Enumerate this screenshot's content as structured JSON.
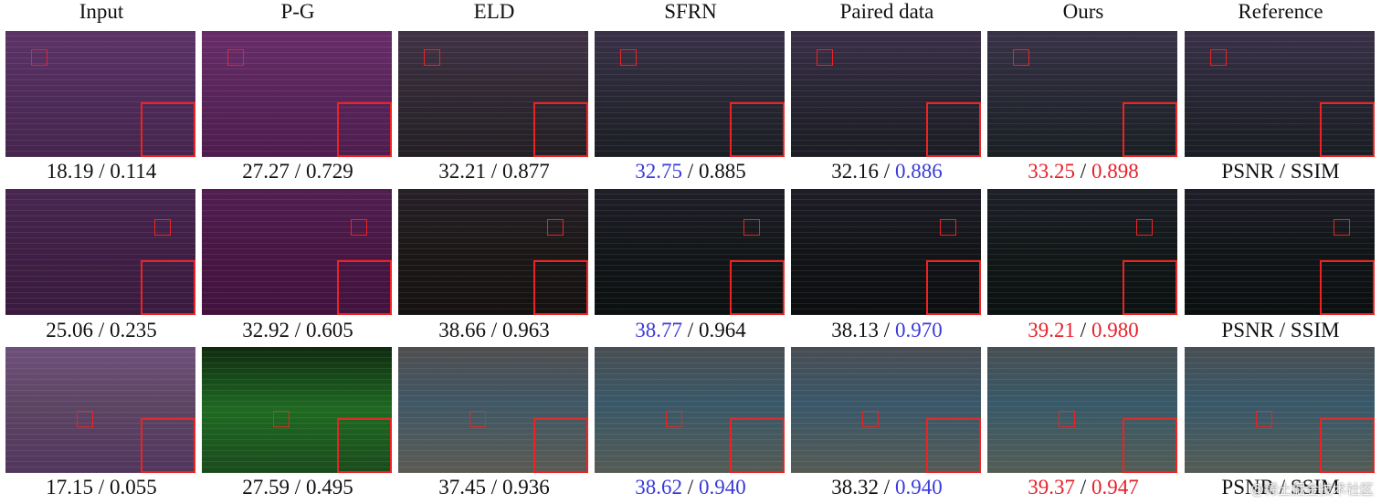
{
  "columns": [
    "Input",
    "P-G",
    "ELD",
    "SFRN",
    "Paired data",
    "Ours",
    "Reference"
  ],
  "separator": "/",
  "rows": [
    {
      "cells": [
        {
          "psnr": "18.19",
          "ssim": "0.114",
          "psnr_color": "#111111",
          "ssim_color": "#111111"
        },
        {
          "psnr": "27.27",
          "ssim": "0.729",
          "psnr_color": "#111111",
          "ssim_color": "#111111"
        },
        {
          "psnr": "32.21",
          "ssim": "0.877",
          "psnr_color": "#111111",
          "ssim_color": "#111111"
        },
        {
          "psnr": "32.75",
          "ssim": "0.885",
          "psnr_color": "#3a3ad8",
          "ssim_color": "#111111"
        },
        {
          "psnr": "32.16",
          "ssim": "0.886",
          "psnr_color": "#111111",
          "ssim_color": "#3a3ad8"
        },
        {
          "psnr": "33.25",
          "ssim": "0.898",
          "psnr_color": "#e8202a",
          "ssim_color": "#e8202a"
        },
        {
          "psnr": "PSNR",
          "ssim": "SSIM",
          "psnr_color": "#111111",
          "ssim_color": "#111111"
        }
      ]
    },
    {
      "cells": [
        {
          "psnr": "25.06",
          "ssim": "0.235",
          "psnr_color": "#111111",
          "ssim_color": "#111111"
        },
        {
          "psnr": "32.92",
          "ssim": "0.605",
          "psnr_color": "#111111",
          "ssim_color": "#111111"
        },
        {
          "psnr": "38.66",
          "ssim": "0.963",
          "psnr_color": "#111111",
          "ssim_color": "#111111"
        },
        {
          "psnr": "38.77",
          "ssim": "0.964",
          "psnr_color": "#3a3ad8",
          "ssim_color": "#111111"
        },
        {
          "psnr": "38.13",
          "ssim": "0.970",
          "psnr_color": "#111111",
          "ssim_color": "#3a3ad8"
        },
        {
          "psnr": "39.21",
          "ssim": "0.980",
          "psnr_color": "#e8202a",
          "ssim_color": "#e8202a"
        },
        {
          "psnr": "PSNR",
          "ssim": "SSIM",
          "psnr_color": "#111111",
          "ssim_color": "#111111"
        }
      ]
    },
    {
      "cells": [
        {
          "psnr": "17.15",
          "ssim": "0.055",
          "psnr_color": "#111111",
          "ssim_color": "#111111"
        },
        {
          "psnr": "27.59",
          "ssim": "0.495",
          "psnr_color": "#111111",
          "ssim_color": "#111111"
        },
        {
          "psnr": "37.45",
          "ssim": "0.936",
          "psnr_color": "#111111",
          "ssim_color": "#111111"
        },
        {
          "psnr": "38.62",
          "ssim": "0.940",
          "psnr_color": "#3a3ad8",
          "ssim_color": "#3a3ad8"
        },
        {
          "psnr": "38.32",
          "ssim": "0.940",
          "psnr_color": "#111111",
          "ssim_color": "#3a3ad8"
        },
        {
          "psnr": "39.37",
          "ssim": "0.947",
          "psnr_color": "#e8202a",
          "ssim_color": "#e8202a"
        },
        {
          "psnr": "PSNR",
          "ssim": "SSIM",
          "psnr_color": "#111111",
          "ssim_color": "#111111"
        }
      ]
    }
  ],
  "watermark": "@稀土掘金技术社区"
}
